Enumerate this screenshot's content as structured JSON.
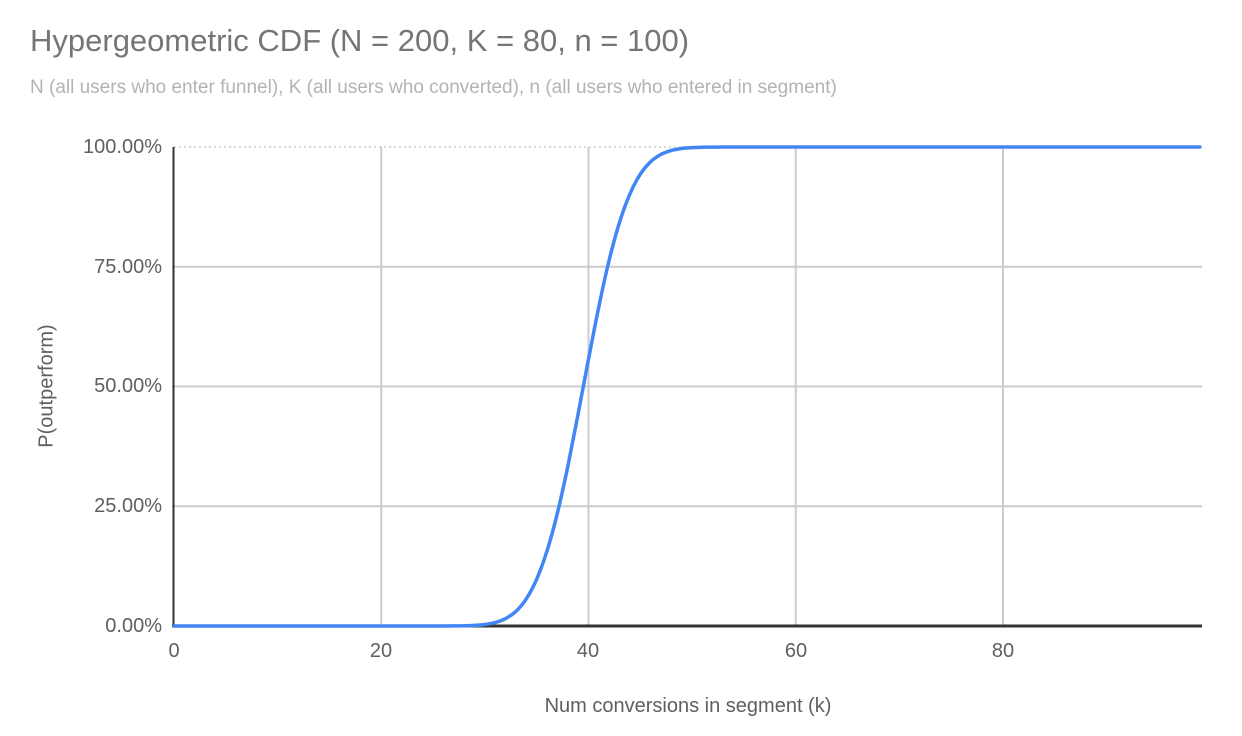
{
  "chart_data": {
    "type": "line",
    "title": "Hypergeometric CDF (N = 200, K = 80, n = 100)",
    "subtitle": "N (all users who enter funnel), K (all users who converted), n (all users who entered in segment)",
    "xlabel": "Num conversions in segment (k)",
    "ylabel": "P(outperform)",
    "xlim": [
      0,
      99
    ],
    "ylim": [
      0,
      1
    ],
    "grid": true,
    "legend_position": "none",
    "x_ticks": [
      "0",
      "20",
      "40",
      "60",
      "80"
    ],
    "x_tick_values": [
      0,
      20,
      40,
      60,
      80
    ],
    "y_ticks": [
      "100.00%",
      "75.00%",
      "50.00%",
      "25.00%",
      "0.00%"
    ],
    "y_tick_values": [
      1,
      0.75,
      0.5,
      0.25,
      0
    ],
    "series": [
      {
        "name": "P(outperform)",
        "color": "#4285f4",
        "x": [
          0,
          1,
          2,
          3,
          4,
          5,
          6,
          7,
          8,
          9,
          10,
          11,
          12,
          13,
          14,
          15,
          16,
          17,
          18,
          19,
          20,
          21,
          22,
          23,
          24,
          25,
          26,
          27,
          28,
          29,
          30,
          31,
          32,
          33,
          34,
          35,
          36,
          37,
          38,
          39,
          40,
          41,
          42,
          43,
          44,
          45,
          46,
          47,
          48,
          49,
          50,
          51,
          52,
          53,
          54,
          55,
          56,
          57,
          58,
          59,
          60,
          61,
          62,
          63,
          64,
          65,
          66,
          67,
          68,
          69,
          70,
          71,
          72,
          73,
          74,
          75,
          76,
          77,
          78,
          79,
          80,
          81,
          82,
          83,
          84,
          85,
          86,
          87,
          88,
          89,
          90,
          91,
          92,
          93,
          94,
          95,
          96,
          97,
          98,
          99
        ],
        "y": [
          0,
          0,
          0,
          0,
          0,
          0,
          0,
          0,
          0,
          0,
          0,
          0,
          0,
          0,
          0,
          0,
          0,
          0,
          0,
          0,
          0,
          0,
          0,
          0,
          0,
          0,
          0.0001,
          0.0002,
          0.0005,
          0.0013,
          0.0031,
          0.0072,
          0.0154,
          0.0307,
          0.0567,
          0.0977,
          0.1568,
          0.2358,
          0.3329,
          0.4428,
          0.5572,
          0.6671,
          0.7642,
          0.8432,
          0.9023,
          0.9433,
          0.9693,
          0.9846,
          0.9928,
          0.9969,
          0.9987,
          0.9995,
          0.9998,
          0.9999,
          1,
          1,
          1,
          1,
          1,
          1,
          1,
          1,
          1,
          1,
          1,
          1,
          1,
          1,
          1,
          1,
          1,
          1,
          1,
          1,
          1,
          1,
          1,
          1,
          1,
          1,
          1,
          1,
          1,
          1,
          1,
          1,
          1,
          1,
          1,
          1,
          1,
          1,
          1,
          1,
          1,
          1,
          1,
          1,
          1,
          1
        ]
      }
    ],
    "colors": {
      "line": "#4285f4",
      "gridline": "#cccccc",
      "axis_line": "#333333",
      "title_text": "#757575",
      "subtitle_text": "#b3b3b3",
      "tick_text": "#5f5f5f",
      "background": "#ffffff"
    }
  }
}
